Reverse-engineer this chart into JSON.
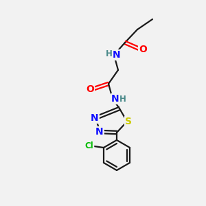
{
  "bg_color": "#f2f2f2",
  "bond_color": "#1a1a1a",
  "atom_colors": {
    "N": "#1010ff",
    "O": "#ff0000",
    "S": "#cccc00",
    "Cl": "#00bb00",
    "C": "#1a1a1a",
    "H": "#4a8a8a"
  },
  "figsize": [
    3.0,
    3.0
  ],
  "dpi": 100,
  "lw": 1.6,
  "fs": 10,
  "fss": 8.5
}
